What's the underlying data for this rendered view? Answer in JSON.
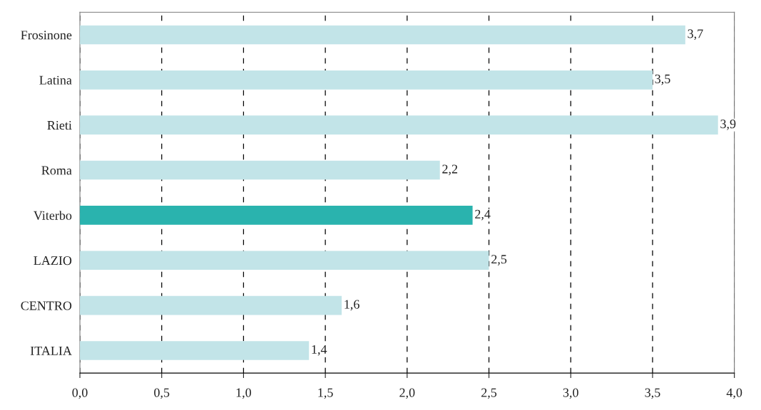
{
  "chart_data": {
    "type": "bar",
    "orientation": "horizontal",
    "categories": [
      "Frosinone",
      "Latina",
      "Rieti",
      "Roma",
      "Viterbo",
      "LAZIO",
      "CENTRO",
      "ITALIA"
    ],
    "values": [
      3.7,
      3.5,
      3.9,
      2.2,
      2.4,
      2.5,
      1.6,
      1.4
    ],
    "colors": [
      "#c2e4e8",
      "#c2e4e8",
      "#c2e4e8",
      "#c2e4e8",
      "#2ab3ae",
      "#c2e4e8",
      "#c2e4e8",
      "#c2e4e8"
    ],
    "value_labels": [
      "3,7",
      "3,5",
      "3,9",
      "2,2",
      "2,4",
      "2,5",
      "1,6",
      "1,4"
    ],
    "xlim": [
      0,
      4
    ],
    "xticks": [
      {
        "value": 0,
        "label": "0,0"
      },
      {
        "value": 0.5,
        "label": "0,5"
      },
      {
        "value": 1,
        "label": "1,0"
      },
      {
        "value": 1.5,
        "label": "1,5"
      },
      {
        "value": 2,
        "label": "2,0"
      },
      {
        "value": 2.5,
        "label": "2,5"
      },
      {
        "value": 3,
        "label": "3,0"
      },
      {
        "value": 3.5,
        "label": "3,5"
      },
      {
        "value": 4,
        "label": "4,0"
      }
    ],
    "grid": "x"
  }
}
